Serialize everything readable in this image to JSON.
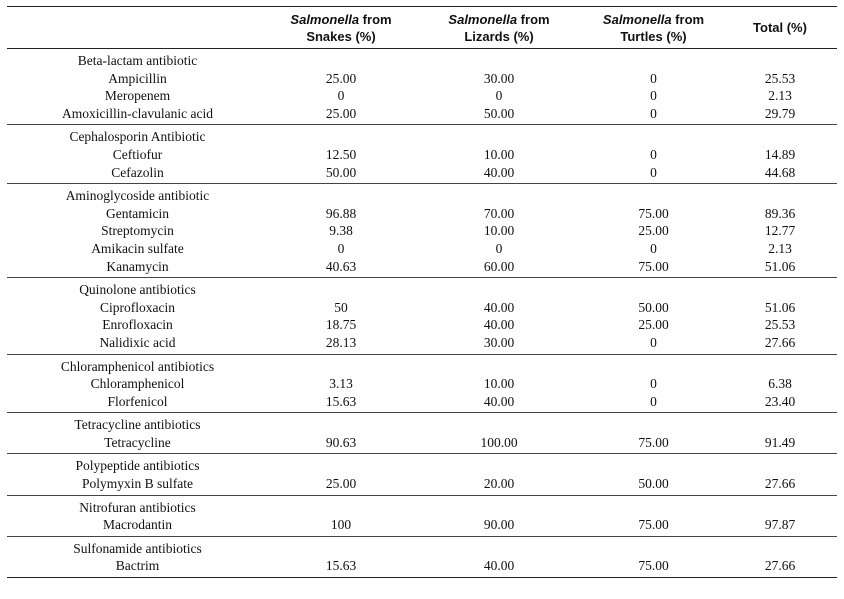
{
  "header": {
    "col0": "",
    "col1_italic": "Salmonella",
    "col1_rest": " from",
    "col1_line2": "Snakes (%)",
    "col2_italic": "Salmonella",
    "col2_rest": " from",
    "col2_line2": "Lizards (%)",
    "col3_italic": "Salmonella",
    "col3_rest": " from",
    "col3_line2": "Turtles (%)",
    "col4": "Total (%)"
  },
  "groups": [
    {
      "title": "Beta-lactam antibiotic",
      "rows": [
        {
          "name": "Ampicillin",
          "snakes": "25.00",
          "lizards": "30.00",
          "turtles": "0",
          "total": "25.53"
        },
        {
          "name": "Meropenem",
          "snakes": "0",
          "lizards": "0",
          "turtles": "0",
          "total": "2.13"
        },
        {
          "name": "Amoxicillin-clavulanic acid",
          "snakes": "25.00",
          "lizards": "50.00",
          "turtles": "0",
          "total": "29.79"
        }
      ]
    },
    {
      "title": "Cephalosporin Antibiotic",
      "rows": [
        {
          "name": "Ceftiofur",
          "snakes": "12.50",
          "lizards": "10.00",
          "turtles": "0",
          "total": "14.89"
        },
        {
          "name": "Cefazolin",
          "snakes": "50.00",
          "lizards": "40.00",
          "turtles": "0",
          "total": "44.68"
        }
      ]
    },
    {
      "title": "Aminoglycoside antibiotic",
      "rows": [
        {
          "name": "Gentamicin",
          "snakes": "96.88",
          "lizards": "70.00",
          "turtles": "75.00",
          "total": "89.36"
        },
        {
          "name": "Streptomycin",
          "snakes": "9.38",
          "lizards": "10.00",
          "turtles": "25.00",
          "total": "12.77"
        },
        {
          "name": "Amikacin sulfate",
          "snakes": "0",
          "lizards": "0",
          "turtles": "0",
          "total": "2.13"
        },
        {
          "name": "Kanamycin",
          "snakes": "40.63",
          "lizards": "60.00",
          "turtles": "75.00",
          "total": "51.06"
        }
      ]
    },
    {
      "title": "Quinolone antibiotics",
      "rows": [
        {
          "name": "Ciprofloxacin",
          "snakes": "50",
          "lizards": "40.00",
          "turtles": "50.00",
          "total": "51.06"
        },
        {
          "name": "Enrofloxacin",
          "snakes": "18.75",
          "lizards": "40.00",
          "turtles": "25.00",
          "total": "25.53"
        },
        {
          "name": "Nalidixic acid",
          "snakes": "28.13",
          "lizards": "30.00",
          "turtles": "0",
          "total": "27.66"
        }
      ]
    },
    {
      "title": "Chloramphenicol antibiotics",
      "rows": [
        {
          "name": "Chloramphenicol",
          "snakes": "3.13",
          "lizards": "10.00",
          "turtles": "0",
          "total": "6.38"
        },
        {
          "name": "Florfenicol",
          "snakes": "15.63",
          "lizards": "40.00",
          "turtles": "0",
          "total": "23.40"
        }
      ]
    },
    {
      "title": "Tetracycline antibiotics",
      "rows": [
        {
          "name": "Tetracycline",
          "snakes": "90.63",
          "lizards": "100.00",
          "turtles": "75.00",
          "total": "91.49"
        }
      ]
    },
    {
      "title": "Polypeptide antibiotics",
      "rows": [
        {
          "name": "Polymyxin B sulfate",
          "snakes": "25.00",
          "lizards": "20.00",
          "turtles": "50.00",
          "total": "27.66"
        }
      ]
    },
    {
      "title": "Nitrofuran antibiotics",
      "rows": [
        {
          "name": "Macrodantin",
          "snakes": "100",
          "lizards": "90.00",
          "turtles": "75.00",
          "total": "97.87"
        }
      ]
    },
    {
      "title": "Sulfonamide antibiotics",
      "rows": [
        {
          "name": "Bactrim",
          "snakes": "15.63",
          "lizards": "40.00",
          "turtles": "75.00",
          "total": "27.66"
        }
      ]
    }
  ]
}
